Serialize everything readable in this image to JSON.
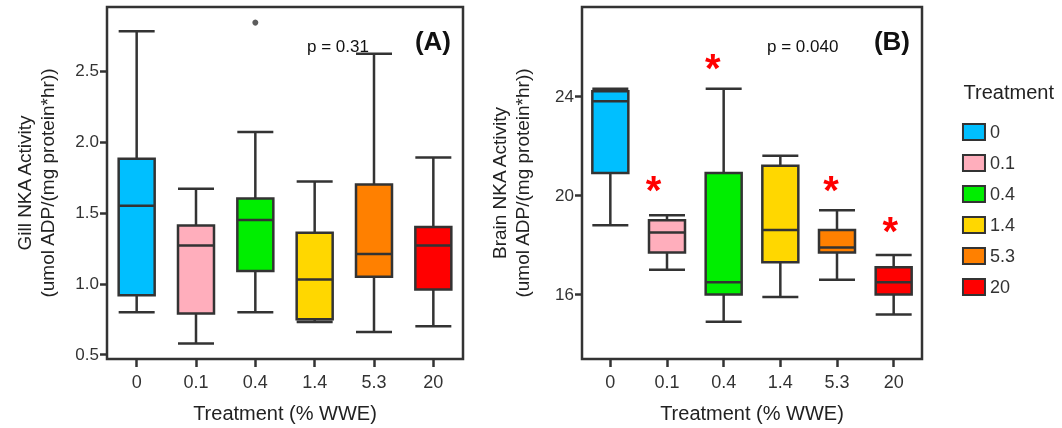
{
  "chart_data": [
    {
      "type": "box",
      "xlabel": "Treatment (% WWE)",
      "ylabel": "Gill NKA Activity\n(umol ADP/(mg protein*hr))",
      "categories": [
        "0",
        "0.1",
        "0.4",
        "1.4",
        "5.3",
        "20"
      ],
      "colors": [
        "#00bfff",
        "#ffaebc",
        "#00ee00",
        "#ffd700",
        "#ff8000",
        "#ff0000"
      ],
      "boxes": [
        {
          "low": 0.8,
          "q1": 0.92,
          "median": 1.55,
          "q3": 1.88,
          "high": 2.78
        },
        {
          "low": 0.58,
          "q1": 0.79,
          "median": 1.27,
          "q3": 1.41,
          "high": 1.67
        },
        {
          "low": 0.8,
          "q1": 1.09,
          "median": 1.45,
          "q3": 1.6,
          "high": 2.07,
          "outliers": [
            2.84
          ]
        },
        {
          "low": 0.73,
          "q1": 0.75,
          "median": 1.03,
          "q3": 1.36,
          "high": 1.72
        },
        {
          "low": 0.66,
          "q1": 1.05,
          "median": 1.21,
          "q3": 1.7,
          "high": 2.62
        },
        {
          "low": 0.7,
          "q1": 0.96,
          "median": 1.27,
          "q3": 1.4,
          "high": 1.89
        }
      ],
      "ylim": [
        0.47,
        2.95
      ],
      "yticks": [
        {
          "value": 0.5,
          "label": "0.5"
        },
        {
          "value": 1,
          "label": "1.0"
        },
        {
          "value": 1.5,
          "label": "1.5"
        },
        {
          "value": 2,
          "label": "2.0"
        },
        {
          "value": 2.5,
          "label": "2.5"
        }
      ],
      "grid": false,
      "legend": false,
      "annotations": [
        "p = 0.31",
        "(A)"
      ]
    },
    {
      "type": "box",
      "xlabel": "Treatment (% WWE)",
      "ylabel": "Brain NKA Activity\n(umol ADP/(mg protein*hr))",
      "categories": [
        "0",
        "0.1",
        "0.4",
        "1.4",
        "5.3",
        "20"
      ],
      "series": [
        {
          "name": "0",
          "color": "#00bfff",
          "boxes": [
            {
              "low": 18.8,
              "q1": 20.9,
              "median": 23.8,
              "q3": 24.2,
              "high": 24.3
            },
            null,
            null,
            null,
            null,
            null
          ]
        },
        {
          "name": "0.1",
          "color": "#ffaebc",
          "boxes": [
            null,
            {
              "low": 17.0,
              "q1": 17.7,
              "median": 18.5,
              "q3": 19.0,
              "high": 19.2
            },
            null,
            null,
            null,
            null
          ]
        },
        {
          "name": "0.4",
          "color": "#00ee00",
          "boxes": [
            null,
            null,
            {
              "low": 14.9,
              "q1": 16.0,
              "median": 16.5,
              "q3": 20.9,
              "high": 24.3
            },
            null,
            null,
            null
          ]
        },
        {
          "name": "1.4",
          "color": "#ffd700",
          "boxes": [
            null,
            null,
            null,
            {
              "low": 15.9,
              "q1": 17.3,
              "median": 18.6,
              "q3": 21.2,
              "high": 21.6
            },
            null,
            null
          ]
        },
        {
          "name": "5.3",
          "color": "#ff8000",
          "boxes": [
            null,
            null,
            null,
            null,
            {
              "low": 16.6,
              "q1": 17.7,
              "median": 17.9,
              "q3": 18.6,
              "high": 19.4
            },
            null
          ]
        },
        {
          "name": "20",
          "color": "#ff0000",
          "boxes": [
            null,
            null,
            null,
            null,
            null,
            {
              "low": 15.2,
              "q1": 16.0,
              "median": 16.5,
              "q3": 17.1,
              "high": 17.6
            }
          ]
        }
      ],
      "ylim": [
        13.4,
        27.6
      ],
      "yticks": [
        16,
        20,
        24
      ],
      "grid": false,
      "legend": "right",
      "legend_title": "Treatment",
      "annotations": [
        "p = 0.040",
        "(B)",
        "*",
        "*",
        "*",
        "*"
      ]
    }
  ]
}
